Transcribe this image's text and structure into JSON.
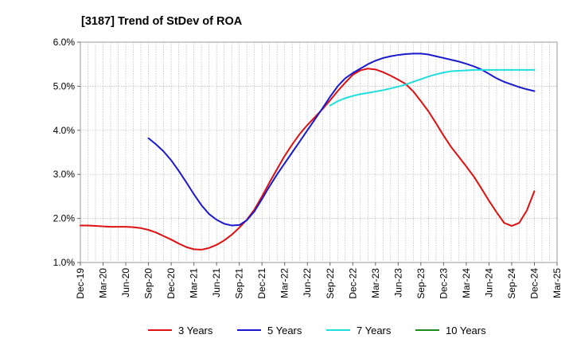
{
  "chart_data": {
    "type": "line",
    "title": "[3187]  Trend of StDev of ROA",
    "xlabel": "",
    "ylabel": "",
    "x_ticks": [
      "Dec-19",
      "Mar-20",
      "Jun-20",
      "Sep-20",
      "Dec-20",
      "Mar-21",
      "Jun-21",
      "Sep-21",
      "Dec-21",
      "Mar-22",
      "Jun-22",
      "Sep-22",
      "Dec-22",
      "Mar-23",
      "Jun-23",
      "Sep-23",
      "Dec-23",
      "Mar-24",
      "Jun-24",
      "Sep-24",
      "Dec-24",
      "Mar-25"
    ],
    "y_ticks": [
      "1.0%",
      "2.0%",
      "3.0%",
      "4.0%",
      "5.0%",
      "6.0%"
    ],
    "ylim": [
      1.0,
      6.0
    ],
    "grid": true,
    "legend_position": "bottom",
    "series": [
      {
        "name": "3 Years",
        "color": "#dd1111",
        "x": [
          "Dec-19",
          "Jan-20",
          "Feb-20",
          "Mar-20",
          "Apr-20",
          "May-20",
          "Jun-20",
          "Jul-20",
          "Aug-20",
          "Sep-20",
          "Oct-20",
          "Nov-20",
          "Dec-20",
          "Jan-21",
          "Feb-21",
          "Mar-21",
          "Apr-21",
          "May-21",
          "Jun-21",
          "Jul-21",
          "Aug-21",
          "Sep-21",
          "Oct-21",
          "Nov-21",
          "Dec-21",
          "Jan-22",
          "Feb-22",
          "Mar-22",
          "Apr-22",
          "May-22",
          "Jun-22",
          "Jul-22",
          "Aug-22",
          "Sep-22",
          "Oct-22",
          "Nov-22",
          "Dec-22",
          "Jan-23",
          "Feb-23",
          "Mar-23",
          "Apr-23",
          "May-23",
          "Jun-23",
          "Jul-23",
          "Aug-23",
          "Sep-23",
          "Oct-23",
          "Nov-23",
          "Dec-23",
          "Jan-24",
          "Feb-24",
          "Mar-24",
          "Apr-24",
          "May-24",
          "Jun-24",
          "Jul-24",
          "Aug-24",
          "Sep-24",
          "Oct-24",
          "Nov-24",
          "Dec-24"
        ],
        "values": [
          1.84,
          1.84,
          1.83,
          1.82,
          1.81,
          1.81,
          1.81,
          1.8,
          1.78,
          1.74,
          1.68,
          1.6,
          1.52,
          1.43,
          1.35,
          1.3,
          1.29,
          1.33,
          1.4,
          1.5,
          1.63,
          1.79,
          1.97,
          2.2,
          2.5,
          2.82,
          3.12,
          3.42,
          3.68,
          3.92,
          4.12,
          4.3,
          4.48,
          4.68,
          4.89,
          5.08,
          5.26,
          5.36,
          5.4,
          5.38,
          5.32,
          5.24,
          5.15,
          5.05,
          4.88,
          4.66,
          4.43,
          4.16,
          3.88,
          3.62,
          3.4,
          3.18,
          2.95,
          2.68,
          2.4,
          2.14,
          1.9,
          1.83,
          1.9,
          2.18,
          2.62
        ]
      },
      {
        "name": "5 Years",
        "color": "#1a1acc",
        "x": [
          "Sep-20",
          "Oct-20",
          "Nov-20",
          "Dec-20",
          "Jan-21",
          "Feb-21",
          "Mar-21",
          "Apr-21",
          "May-21",
          "Jun-21",
          "Jul-21",
          "Aug-21",
          "Sep-21",
          "Oct-21",
          "Nov-21",
          "Dec-21",
          "Jan-22",
          "Feb-22",
          "Mar-22",
          "Apr-22",
          "May-22",
          "Jun-22",
          "Jul-22",
          "Aug-22",
          "Sep-22",
          "Oct-22",
          "Nov-22",
          "Dec-22",
          "Jan-23",
          "Feb-23",
          "Mar-23",
          "Apr-23",
          "May-23",
          "Jun-23",
          "Jul-23",
          "Aug-23",
          "Sep-23",
          "Oct-23",
          "Nov-23",
          "Dec-23",
          "Jan-24",
          "Feb-24",
          "Mar-24",
          "Apr-24",
          "May-24",
          "Jun-24",
          "Jul-24",
          "Aug-24",
          "Sep-24",
          "Oct-24",
          "Nov-24",
          "Dec-24"
        ],
        "values": [
          3.82,
          3.68,
          3.52,
          3.32,
          3.08,
          2.82,
          2.55,
          2.3,
          2.1,
          1.97,
          1.88,
          1.84,
          1.85,
          1.96,
          2.16,
          2.44,
          2.73,
          3.0,
          3.25,
          3.5,
          3.75,
          4.0,
          4.25,
          4.5,
          4.76,
          5.0,
          5.18,
          5.3,
          5.4,
          5.5,
          5.58,
          5.64,
          5.68,
          5.71,
          5.73,
          5.74,
          5.74,
          5.72,
          5.68,
          5.64,
          5.6,
          5.56,
          5.51,
          5.45,
          5.38,
          5.28,
          5.18,
          5.1,
          5.04,
          4.98,
          4.93,
          4.89
        ]
      },
      {
        "name": "7 Years",
        "color": "#22dddd",
        "x": [
          "Sep-22",
          "Oct-22",
          "Nov-22",
          "Dec-22",
          "Jan-23",
          "Feb-23",
          "Mar-23",
          "Apr-23",
          "May-23",
          "Jun-23",
          "Jul-23",
          "Aug-23",
          "Sep-23",
          "Oct-23",
          "Nov-23",
          "Dec-23",
          "Jan-24",
          "Feb-24",
          "Mar-24",
          "Apr-24",
          "May-24",
          "Jun-24",
          "Jul-24",
          "Aug-24",
          "Sep-24",
          "Oct-24",
          "Nov-24",
          "Dec-24"
        ],
        "values": [
          4.56,
          4.66,
          4.73,
          4.78,
          4.82,
          4.85,
          4.88,
          4.91,
          4.95,
          4.99,
          5.04,
          5.1,
          5.16,
          5.22,
          5.27,
          5.31,
          5.34,
          5.35,
          5.36,
          5.37,
          5.37,
          5.37,
          5.37,
          5.37,
          5.37,
          5.37,
          5.37,
          5.37
        ]
      },
      {
        "name": "10 Years",
        "color": "#1a8a1a",
        "x": [],
        "values": []
      }
    ]
  }
}
